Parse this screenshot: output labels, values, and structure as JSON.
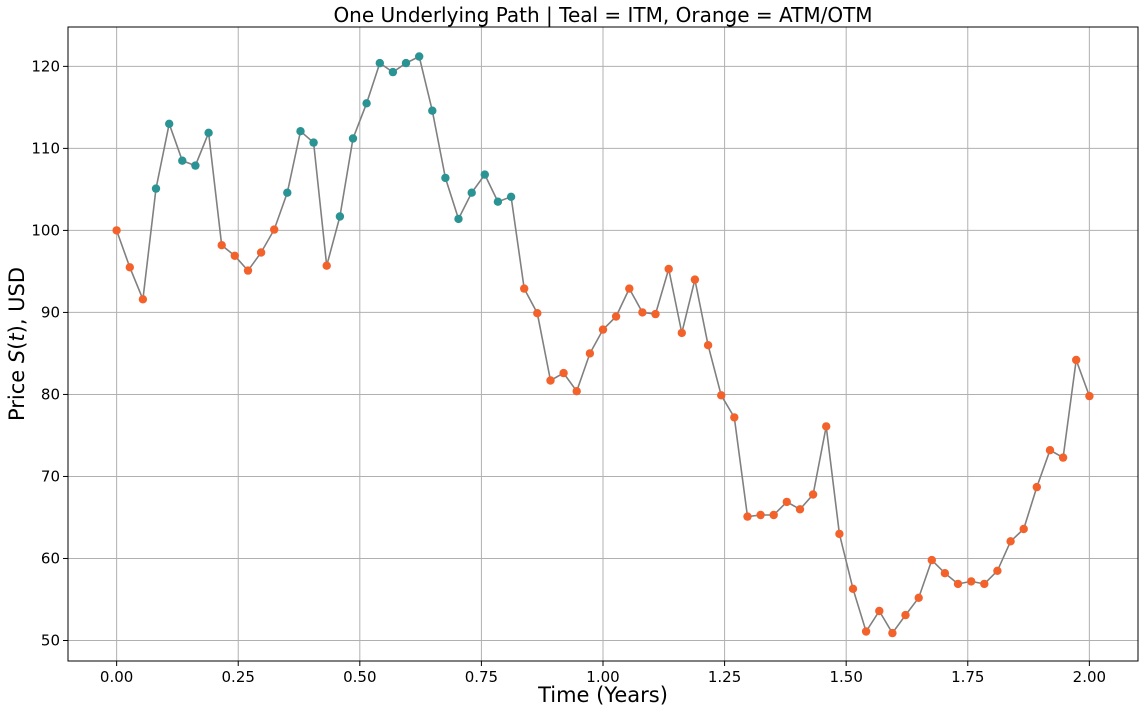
{
  "chart_data": {
    "type": "line",
    "title": "One Underlying Path | Teal = ITM, Orange = ATM/OTM",
    "xlabel": "Time (Years)",
    "ylabel_prefix": "Price ",
    "ylabel_var": "S",
    "ylabel_open": "(",
    "ylabel_arg": "t",
    "ylabel_close": "), USD",
    "xlim": [
      -0.1,
      2.1
    ],
    "ylim": [
      47.5,
      124.8
    ],
    "xticks": [
      0.0,
      0.25,
      0.5,
      0.75,
      1.0,
      1.25,
      1.5,
      1.75,
      2.0
    ],
    "xtick_labels": [
      "0.00",
      "0.25",
      "0.50",
      "0.75",
      "1.00",
      "1.25",
      "1.50",
      "1.75",
      "2.00"
    ],
    "yticks": [
      50,
      60,
      70,
      80,
      90,
      100,
      110,
      120
    ],
    "ytick_labels": [
      "50",
      "60",
      "70",
      "80",
      "90",
      "100",
      "110",
      "120"
    ],
    "grid": true,
    "colors": {
      "line": "#808080",
      "itm": "#2a9393",
      "otm": "#f4622c"
    },
    "series": [
      {
        "x": [
          0.0,
          0.027,
          0.054,
          0.081,
          0.108,
          0.135,
          0.162,
          0.189,
          0.216,
          0.243,
          0.27,
          0.297,
          0.324,
          0.351,
          0.378,
          0.405,
          0.432,
          0.459,
          0.486,
          0.514,
          0.541,
          0.568,
          0.595,
          0.622,
          0.649,
          0.676,
          0.703,
          0.73,
          0.757,
          0.784,
          0.811,
          0.838,
          0.865,
          0.892,
          0.919,
          0.946,
          0.973,
          1.0,
          1.027,
          1.054,
          1.081,
          1.108,
          1.135,
          1.162,
          1.189,
          1.216,
          1.243,
          1.27,
          1.297,
          1.324,
          1.351,
          1.378,
          1.405,
          1.432,
          1.459,
          1.486,
          1.514,
          1.541,
          1.568,
          1.595,
          1.622,
          1.649,
          1.676,
          1.703,
          1.73,
          1.757,
          1.784,
          1.811,
          1.838,
          1.865,
          1.892,
          1.919,
          1.946,
          1.973,
          2.0
        ],
        "values": [
          100.0,
          95.5,
          91.6,
          105.1,
          113.0,
          108.5,
          107.9,
          111.9,
          98.2,
          96.9,
          95.1,
          97.3,
          100.1,
          104.6,
          112.1,
          110.7,
          95.7,
          101.7,
          111.2,
          115.5,
          120.4,
          119.3,
          120.4,
          121.2,
          114.6,
          106.4,
          101.4,
          104.6,
          106.8,
          103.5,
          104.1,
          92.9,
          89.9,
          81.7,
          82.6,
          80.4,
          85.0,
          87.9,
          89.5,
          92.9,
          90.0,
          89.8,
          95.3,
          87.5,
          94.0,
          86.0,
          79.9,
          77.2,
          65.1,
          65.3,
          65.3,
          66.9,
          66.0,
          67.8,
          76.1,
          63.0,
          56.3,
          51.1,
          53.6,
          50.9,
          53.1,
          55.2,
          59.8,
          58.2,
          56.9,
          57.2,
          56.9,
          58.5,
          62.1,
          63.6,
          68.7,
          73.2,
          72.3,
          84.2,
          79.8
        ],
        "itm": [
          0,
          0,
          0,
          1,
          1,
          1,
          1,
          1,
          0,
          0,
          0,
          0,
          0,
          1,
          1,
          1,
          0,
          1,
          1,
          1,
          1,
          1,
          1,
          1,
          1,
          1,
          1,
          1,
          1,
          1,
          1,
          0,
          0,
          0,
          0,
          0,
          0,
          0,
          0,
          0,
          0,
          0,
          0,
          0,
          0,
          0,
          0,
          0,
          0,
          0,
          0,
          0,
          0,
          0,
          0,
          0,
          0,
          0,
          0,
          0,
          0,
          0,
          0,
          0,
          0,
          0,
          0,
          0,
          0,
          0,
          0,
          0,
          0,
          0,
          0
        ]
      }
    ]
  }
}
